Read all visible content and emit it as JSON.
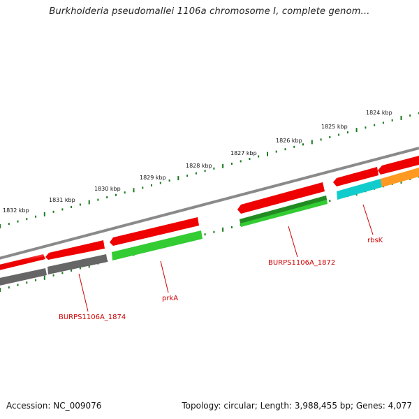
{
  "title": "Burkholderia pseudomallei 1106a chromosome I, complete genom...",
  "footer": {
    "accession": "Accession: NC_009076",
    "topology": "Topology: circular; Length: 3,988,455 bp; Genes: 4,077"
  },
  "ruler": {
    "labels": [
      "1824 kbp",
      "1825 kbp",
      "1826 kbp",
      "1827 kbp",
      "1828 kbp",
      "1829 kbp",
      "1830 kbp",
      "1831 kbp",
      "1832 kbp"
    ],
    "tick_color": "#1a7a1a"
  },
  "colors": {
    "backbone": "#8a8a8a",
    "forward_cds": "#ee0000",
    "gene_gray": "#666666",
    "gene_light_green": "#33cc33",
    "gene_dark_green": "#228b22",
    "gene_cyan": "#11cccc",
    "gene_orange": "#ff9922",
    "label": "#cc0000"
  },
  "genes": [
    {
      "label": "BURPS1106A_1874"
    },
    {
      "label": "prkA"
    },
    {
      "label": "BURPS1106A_1872"
    },
    {
      "label": "rbsK"
    }
  ]
}
